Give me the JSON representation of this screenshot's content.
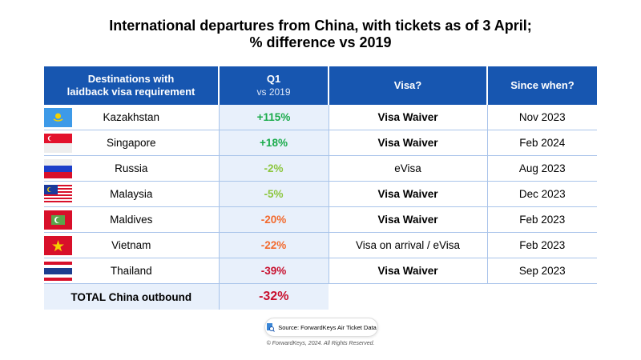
{
  "chart_data": {
    "type": "table",
    "title_line1": "International departures from China, with tickets as of 3 April;",
    "title_line2": "% difference vs 2019",
    "headers": {
      "dest": "Destinations with",
      "dest2": "laidback visa requirement",
      "q1": "Q1",
      "q1_sub": "vs 2019",
      "visa": "Visa?",
      "since": "Since when?"
    },
    "rows": [
      {
        "country": "Kazakhstan",
        "q1": "+115%",
        "q1_value": 115,
        "visa": "Visa Waiver",
        "since": "Nov 2023",
        "color": "#1aab4b",
        "bold": true
      },
      {
        "country": "Singapore",
        "q1": "+18%",
        "q1_value": 18,
        "visa": "Visa Waiver",
        "since": "Feb 2024",
        "color": "#1aab4b",
        "bold": true
      },
      {
        "country": "Russia",
        "q1": "-2%",
        "q1_value": -2,
        "visa": "eVisa",
        "since": "Aug 2023",
        "color": "#8cc63f",
        "bold": false
      },
      {
        "country": "Malaysia",
        "q1": "-5%",
        "q1_value": -5,
        "visa": "Visa Waiver",
        "since": "Dec 2023",
        "color": "#8cc63f",
        "bold": true
      },
      {
        "country": "Maldives",
        "q1": "-20%",
        "q1_value": -20,
        "visa": "Visa Waiver",
        "since": "Feb 2023",
        "color": "#f26a2e",
        "bold": true
      },
      {
        "country": "Vietnam",
        "q1": "-22%",
        "q1_value": -22,
        "visa": "Visa on arrival / eVisa",
        "since": "Feb 2023",
        "color": "#f26a2e",
        "bold": false
      },
      {
        "country": "Thailand",
        "q1": "-39%",
        "q1_value": -39,
        "visa": "Visa Waiver",
        "since": "Sep 2023",
        "color": "#c8102e",
        "bold": true
      }
    ],
    "total": {
      "label": "TOTAL China outbound",
      "q1": "-32%",
      "q1_value": -32,
      "color": "#c8102e"
    }
  },
  "source": "Source: ForwardKeys Air Ticket Data",
  "copyright": "© ForwardKeys, 2024. All Rights Reserved."
}
